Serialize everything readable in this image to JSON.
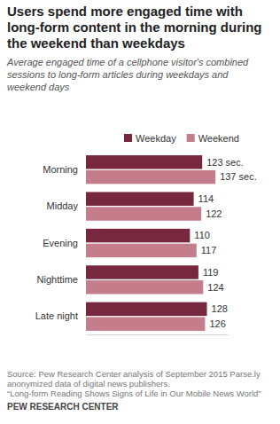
{
  "chart_data": {
    "type": "bar",
    "orientation": "horizontal",
    "title": "Users spend more engaged time with long-form content in the morning during the weekend than weekdays",
    "subtitle": "Average engaged time of a cellphone visitor's combined sessions to long-form articles during weekdays and weekend days",
    "categories": [
      "Morning",
      "Midday",
      "Evening",
      "Nighttime",
      "Late night"
    ],
    "series": [
      {
        "name": "Weekday",
        "color": "#77283f",
        "values": [
          123,
          114,
          110,
          119,
          128
        ],
        "value_labels": [
          "123 sec.",
          "114",
          "110",
          "119",
          "128"
        ]
      },
      {
        "name": "Weekend",
        "color": "#c67d8b",
        "values": [
          137,
          122,
          117,
          124,
          126
        ],
        "value_labels": [
          "137 sec.",
          "122",
          "117",
          "124",
          "126"
        ]
      }
    ],
    "xlim": [
      0,
      150
    ],
    "xticks": [],
    "tick_labels": "y",
    "data_labels": true,
    "legend": "top",
    "annotations": [
      "Source: Pew Research Center analysis of September 2015 Parse.ly anonymized data of digital news publishers.",
      "“Long-form Reading Shows Signs of Life in Our Mobile News World”",
      "PEW RESEARCH CENTER"
    ]
  }
}
